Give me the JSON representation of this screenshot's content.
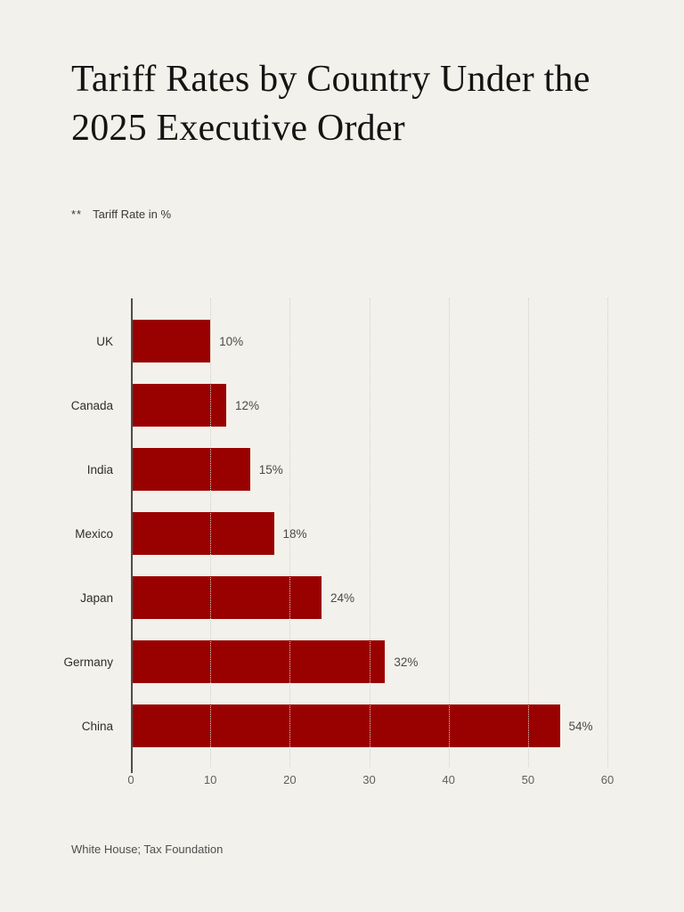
{
  "page": {
    "title": "Tariff Rates by Country Under the 2025 Executive Order",
    "footnote_marker": "**",
    "subtitle": "Tariff Rate in %",
    "source": "White House; Tax Foundation",
    "background_color": "#F2F1EB"
  },
  "chart_data": {
    "type": "bar",
    "orientation": "horizontal",
    "title": "Tariff Rates by Country Under the 2025 Executive Order",
    "xlabel": "",
    "ylabel": "",
    "categories": [
      "UK",
      "Canada",
      "India",
      "Mexico",
      "Japan",
      "Germany",
      "China"
    ],
    "values": [
      10,
      12,
      15,
      18,
      24,
      32,
      54
    ],
    "value_labels": [
      "10%",
      "12%",
      "15%",
      "18%",
      "24%",
      "32%",
      "54%"
    ],
    "xlim": [
      0,
      60
    ],
    "x_ticks": [
      0,
      10,
      20,
      30,
      40,
      50,
      60
    ],
    "grid": "vertical-dotted",
    "legend": "none",
    "bar_color": "#990100",
    "axis_color": "#4d4d4d",
    "gridline_color": "#d2d0c8",
    "label_color": "#2e2e2e",
    "value_label_color": "#4a4a4a",
    "tick_label_color": "#5f5f5f"
  }
}
